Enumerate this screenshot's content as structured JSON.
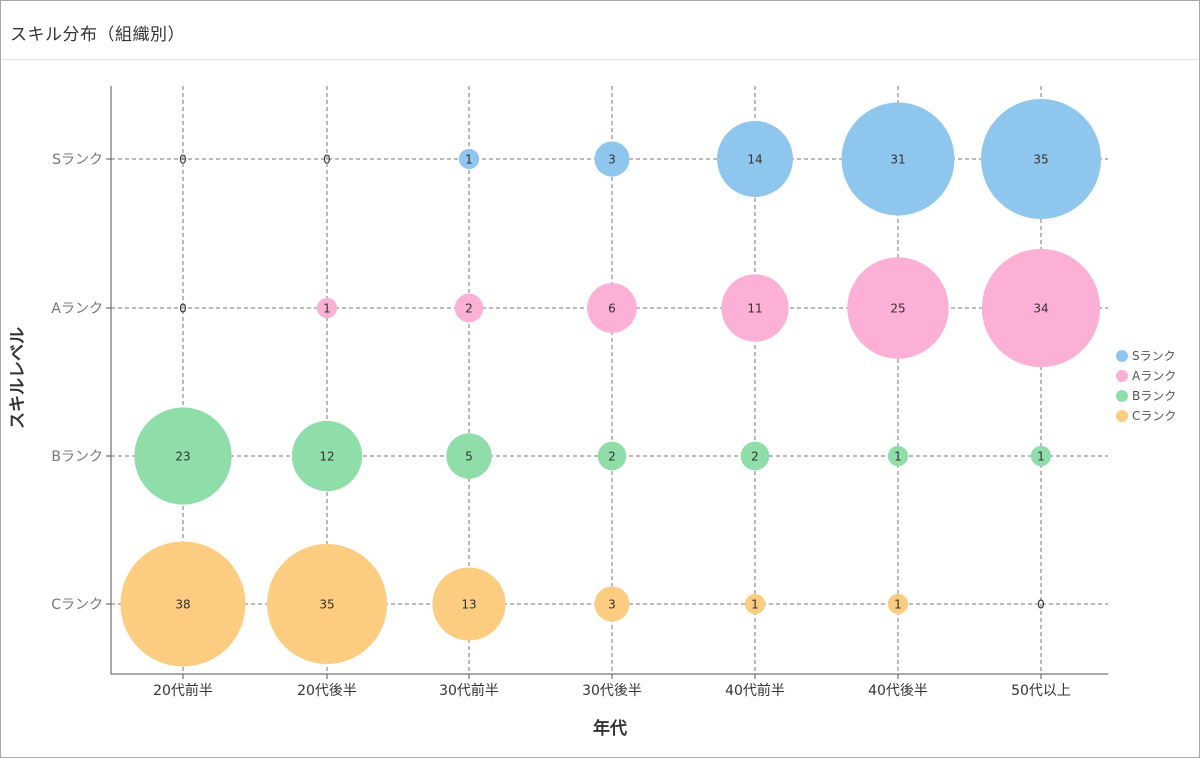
{
  "page": {
    "title": "スキル分布（組織別）"
  },
  "chart_data": {
    "type": "scatter",
    "subtype": "bubble",
    "x_label": "年代",
    "y_label": "スキルレベル",
    "categories": [
      "20代前半",
      "20代後半",
      "30代前半",
      "30代後半",
      "40代前半",
      "40代後半",
      "50代以上"
    ],
    "y_categories": [
      "Sランク",
      "Aランク",
      "Bランク",
      "Cランク"
    ],
    "grid": "dashed",
    "legend_position": "right",
    "series": [
      {
        "name": "Sランク",
        "color": "#8ec6ee",
        "values": [
          0,
          0,
          1,
          3,
          14,
          31,
          35
        ]
      },
      {
        "name": "Aランク",
        "color": "#fcb0d6",
        "values": [
          0,
          1,
          2,
          6,
          11,
          25,
          34
        ]
      },
      {
        "name": "Bランク",
        "color": "#8fdeaa",
        "values": [
          23,
          12,
          5,
          2,
          2,
          1,
          1
        ]
      },
      {
        "name": "Cランク",
        "color": "#fccc80",
        "values": [
          38,
          35,
          13,
          3,
          1,
          1,
          0
        ]
      }
    ]
  }
}
